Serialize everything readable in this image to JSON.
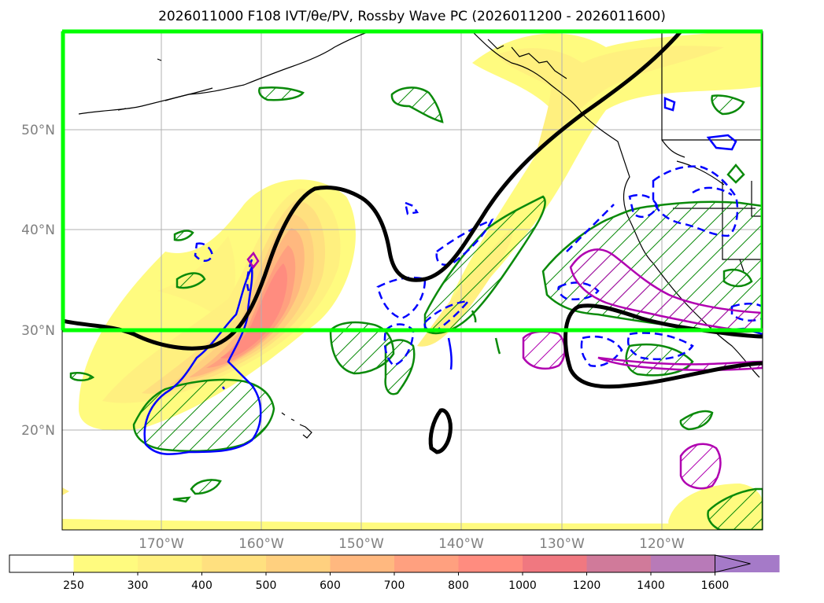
{
  "title": "2026011000 F108 IVT/θe/PV, Rossby Wave PC (2026011200 - 2026011600)",
  "lat_labels": [
    "50°N",
    "40°N",
    "30°N",
    "20°N"
  ],
  "lon_labels": [
    "170°W",
    "160°W",
    "150°W",
    "140°W",
    "130°W",
    "120°W"
  ],
  "colorbar": {
    "ticks": [
      "250",
      "300",
      "400",
      "500",
      "600",
      "700",
      "800",
      "1000",
      "1200",
      "1400",
      "1600"
    ],
    "colors": [
      "#ffffff",
      "#fffb7f",
      "#fff07f",
      "#ffe07f",
      "#ffd07f",
      "#ffb87f",
      "#ffa07f",
      "#ff8c7f",
      "#f07880",
      "#d07a9a",
      "#b87ab8",
      "#a57ac8"
    ],
    "extend": "max"
  },
  "colors": {
    "box": "#00ff00",
    "trough_line": "#000000",
    "pv_positive": "#0a8a0a",
    "pv_negative": "#0000ff",
    "theta_e": "#b000b0",
    "grid": "#b0b0b0",
    "coast": "#000000"
  }
}
